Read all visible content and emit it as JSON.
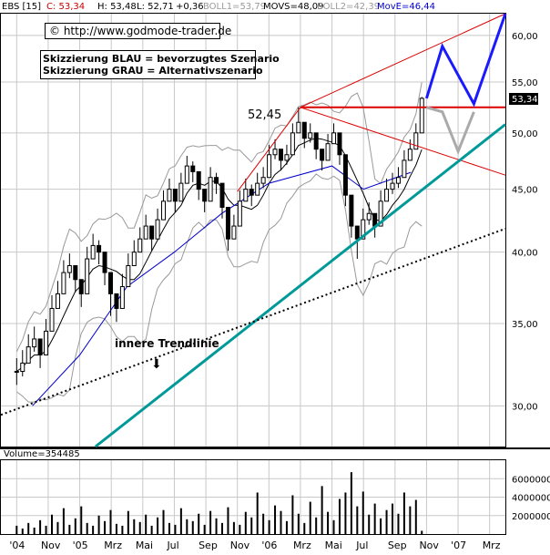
{
  "header": {
    "symbol": "EBS [15]",
    "close": "C: 53,34",
    "high": "H: 53,48",
    "low": "L: 52,71",
    "change": "+0,36",
    "boll1": "BOLL1=53,79",
    "movs": "MOVS=48,09",
    "boll2": "BOLL2=42,39",
    "move": "MovE=46,44"
  },
  "source_box": "© http://www.godmode-trader.de",
  "legend_lines": [
    "Skizzierung BLAU = bevorzugtes Szenario",
    "Skizzierung GRAU = Alternativszenario"
  ],
  "annotations": {
    "peak_label": "52,45",
    "trendline_label": "innere Trendlinie",
    "arrow_glyph": "⬇",
    "last_price_badge": "53,34"
  },
  "volume_label": "Volume=354485",
  "colors": {
    "price_bars": "#000000",
    "bollinger": "#999999",
    "movs": "#000000",
    "move": "#0000cc",
    "resistance_red": "#dd0000",
    "support_teal": "#009999",
    "scenario_blue": "#1a1aff",
    "scenario_grey": "#aaaaaa",
    "grid": "#c8c8c8"
  },
  "chart_data": [
    {
      "type": "candlestick",
      "title": "",
      "yscale": "log",
      "ylim": [
        27.8,
        62.5
      ],
      "yticks": [
        30,
        35,
        40,
        45,
        50,
        55,
        60
      ],
      "ytick_labels": [
        "30,00",
        "35,00",
        "40,00",
        "45,00",
        "50,00",
        "55,00",
        "60,00"
      ],
      "x_tick_labels": [
        "'04",
        "Nov",
        "'05",
        "Mrz",
        "Mai",
        "Jul",
        "Sep",
        "Nov",
        "'06",
        "Mrz",
        "Mai",
        "Jul",
        "Sep",
        "Nov",
        "'07",
        "Mrz"
      ],
      "grid": true,
      "price_close": [
        32.0,
        32.5,
        33.5,
        34.0,
        33.0,
        34.5,
        36.0,
        37.0,
        38.5,
        39.0,
        38.0,
        37.0,
        39.5,
        40.5,
        40.0,
        38.5,
        37.0,
        36.0,
        37.5,
        39.0,
        40.0,
        41.0,
        42.0,
        41.0,
        42.5,
        44.0,
        45.0,
        44.0,
        45.5,
        47.0,
        46.5,
        45.0,
        44.0,
        46.0,
        45.5,
        43.5,
        41.0,
        42.0,
        44.0,
        45.0,
        44.5,
        45.5,
        46.0,
        48.0,
        48.5,
        47.5,
        48.0,
        50.0,
        51.0,
        49.5,
        50.0,
        48.5,
        47.5,
        49.0,
        50.0,
        48.0,
        44.5,
        42.0,
        41.0,
        42.5,
        43.0,
        42.0,
        44.0,
        45.0,
        45.5,
        46.0,
        47.5,
        48.5,
        50.0,
        53.34
      ],
      "price_high": [
        32.8,
        33.3,
        34.3,
        34.8,
        33.8,
        35.3,
        36.9,
        37.9,
        39.4,
        39.9,
        38.9,
        37.9,
        40.4,
        41.4,
        40.9,
        39.4,
        37.9,
        36.9,
        38.4,
        39.9,
        40.9,
        41.9,
        42.9,
        41.9,
        43.4,
        44.9,
        45.9,
        44.9,
        46.4,
        47.9,
        47.4,
        45.9,
        44.9,
        46.9,
        46.4,
        44.4,
        41.9,
        42.9,
        44.9,
        45.9,
        45.4,
        46.4,
        46.9,
        48.9,
        49.4,
        48.4,
        48.9,
        50.9,
        52.45,
        50.4,
        50.9,
        49.4,
        48.4,
        49.9,
        50.9,
        48.9,
        45.4,
        42.9,
        41.9,
        43.4,
        43.9,
        42.9,
        44.9,
        45.9,
        46.4,
        46.9,
        48.4,
        49.4,
        50.9,
        53.48
      ],
      "price_low": [
        31.2,
        31.7,
        32.7,
        33.2,
        32.2,
        33.7,
        35.1,
        36.1,
        37.6,
        38.1,
        37.1,
        36.1,
        38.6,
        39.6,
        39.1,
        37.6,
        35.5,
        35.1,
        36.6,
        38.1,
        39.1,
        40.1,
        41.1,
        40.1,
        41.6,
        43.1,
        44.1,
        43.1,
        44.6,
        46.1,
        45.6,
        44.1,
        43.1,
        45.1,
        44.6,
        42.6,
        40.1,
        41.1,
        43.1,
        44.1,
        43.6,
        44.6,
        45.1,
        47.1,
        47.6,
        46.6,
        47.1,
        49.1,
        50.1,
        48.6,
        49.1,
        47.6,
        46.6,
        48.1,
        49.1,
        47.1,
        43.6,
        41.1,
        39.5,
        41.6,
        42.1,
        41.1,
        43.1,
        44.1,
        44.6,
        45.1,
        46.6,
        47.6,
        49.1,
        52.71
      ],
      "moving_average_exp": [
        {
          "date": "Okt 04",
          "value": 30.0
        },
        {
          "date": "Jan 05",
          "value": 33.0
        },
        {
          "date": "Apr 05",
          "value": 37.5
        },
        {
          "date": "Jul 05",
          "value": 40.0
        },
        {
          "date": "Okt 05",
          "value": 43.0
        },
        {
          "date": "Jan 06",
          "value": 45.5
        },
        {
          "date": "Mai 06",
          "value": 47.0
        },
        {
          "date": "Jul 06",
          "value": 45.0
        },
        {
          "date": "Okt 06",
          "value": 46.44
        }
      ],
      "lines": [
        {
          "name": "resistance_upper",
          "points": [
            {
              "date": "Nov 05",
              "value": 44.8
            },
            {
              "date": "Mrz 06",
              "value": 52.45
            },
            {
              "date": "Apr 07",
              "value": 62.5
            }
          ]
        },
        {
          "name": "horizontal_5245",
          "points": [
            {
              "date": "Mrz 06",
              "value": 52.45
            },
            {
              "date": "Apr 07",
              "value": 52.45
            }
          ]
        },
        {
          "name": "falling_line",
          "points": [
            {
              "date": "Mrz 06",
              "value": 52.45
            },
            {
              "date": "Apr 07",
              "value": 46.2
            }
          ]
        },
        {
          "name": "support_teal",
          "points": [
            {
              "date": "Feb 05",
              "value": 27.8
            },
            {
              "date": "Apr 07",
              "value": 50.8
            }
          ]
        },
        {
          "name": "inner_trendline",
          "points": [
            {
              "date": "Aug 04",
              "value": 29.5
            },
            {
              "date": "Apr 07",
              "value": 41.8
            }
          ]
        }
      ],
      "scenarios": [
        {
          "name": "blue",
          "points": [
            {
              "date": "Nov 06",
              "value": 53.34
            },
            {
              "date": "Dez 06",
              "value": 58.8
            },
            {
              "date": "Feb 07",
              "value": 52.8
            },
            {
              "date": "Apr 07",
              "value": 62.5
            }
          ]
        },
        {
          "name": "grey",
          "points": [
            {
              "date": "Nov 06",
              "value": 52.45
            },
            {
              "date": "Dez 06",
              "value": 52.0
            },
            {
              "date": "Jan 07",
              "value": 48.3
            },
            {
              "date": "Feb 07",
              "value": 52.0
            }
          ]
        }
      ]
    },
    {
      "type": "bar",
      "title": "",
      "ylim": [
        0,
        8000000
      ],
      "yticks": [
        2000000,
        4000000,
        6000000
      ],
      "ytick_labels": [
        "2000000",
        "4000000",
        "6000000"
      ],
      "x_tick_labels": [
        "'04",
        "Nov",
        "'05",
        "Mrz",
        "Mai",
        "Jul",
        "Sep",
        "Nov",
        "'06",
        "Mrz",
        "Mai",
        "Jul",
        "Sep",
        "Nov",
        "'07",
        "Mrz"
      ],
      "values": [
        900000,
        600000,
        1200000,
        700000,
        1500000,
        900000,
        2100000,
        1300000,
        2800000,
        1000000,
        1700000,
        3000000,
        1200000,
        900000,
        2000000,
        1400000,
        2600000,
        1100000,
        900000,
        2500000,
        1600000,
        1300000,
        2100000,
        900000,
        1800000,
        2600000,
        1200000,
        1000000,
        2800000,
        1600000,
        1400000,
        2200000,
        1000000,
        2500000,
        1700000,
        1200000,
        2900000,
        1300000,
        1000000,
        2400000,
        1800000,
        4500000,
        2200000,
        1500000,
        3100000,
        2500000,
        1400000,
        4200000,
        2200000,
        1200000,
        3500000,
        1800000,
        5200000,
        2400000,
        1500000,
        3800000,
        4500000,
        6700000,
        3000000,
        4600000,
        2100000,
        3300000,
        1700000,
        2600000,
        3300000,
        2200000,
        4500000,
        3000000,
        3700000,
        354485
      ]
    }
  ]
}
